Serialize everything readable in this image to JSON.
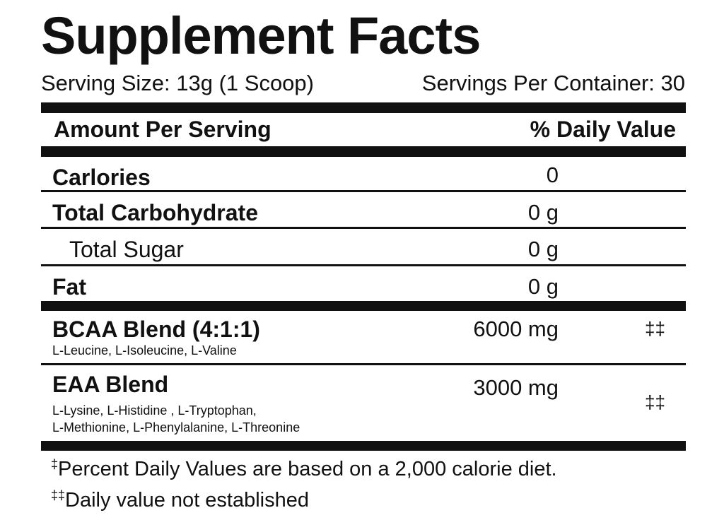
{
  "title": "Supplement Facts",
  "serving_size": "Serving Size: 13g (1 Scoop)",
  "servings_per_container": "Servings Per Container: 30",
  "header": {
    "amount": "Amount Per Serving",
    "daily_value": "% Daily Value"
  },
  "rows": [
    {
      "label": "Carlories",
      "amount": "0"
    },
    {
      "label": "Total Carbohydrate",
      "amount": "0 g"
    },
    {
      "label": "Total Sugar",
      "amount": "0 g"
    },
    {
      "label": "Fat",
      "amount": "0 g"
    }
  ],
  "blends": [
    {
      "name": "BCAA Blend (4:1:1)",
      "ingredients": [
        "L-Leucine, L-Isoleucine, L-Valine"
      ],
      "amount": "6000 mg",
      "daily_value": "‡‡"
    },
    {
      "name": "EAA Blend",
      "ingredients": [
        "L-Lysine, L-Histidine , L-Tryptophan,",
        "L-Methionine, L-Phenylalanine, L-Threonine"
      ],
      "amount": "3000 mg",
      "daily_value": "‡‡"
    }
  ],
  "footnotes": [
    {
      "mark": "‡",
      "text": "Percent Daily Values are based on a 2,000 calorie diet."
    },
    {
      "mark": "‡‡",
      "text": "Daily value not established"
    }
  ]
}
